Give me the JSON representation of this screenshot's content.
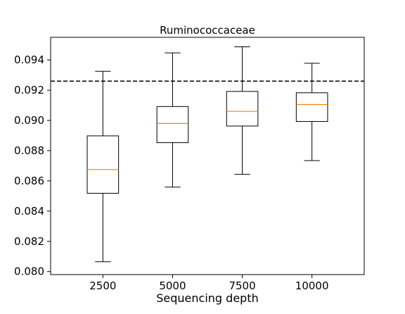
{
  "chart_data": {
    "type": "box",
    "title": "Ruminococcaceae",
    "xlabel": "Sequencing depth",
    "ylabel": "",
    "ylim": [
      0.0798,
      0.0955
    ],
    "yticks": [
      0.08,
      0.082,
      0.084,
      0.086,
      0.088,
      0.09,
      0.092,
      0.094
    ],
    "ytick_labels": [
      "0.080",
      "0.082",
      "0.084",
      "0.086",
      "0.088",
      "0.090",
      "0.092",
      "0.094"
    ],
    "categories": [
      "2500",
      "5000",
      "7500",
      "10000"
    ],
    "boxes": [
      {
        "category": "2500",
        "whisker_low": 0.08065,
        "q1": 0.08518,
        "median": 0.08675,
        "q3": 0.08898,
        "whisker_high": 0.09325
      },
      {
        "category": "5000",
        "whisker_low": 0.08559,
        "q1": 0.08853,
        "median": 0.0898,
        "q3": 0.09092,
        "whisker_high": 0.09447
      },
      {
        "category": "7500",
        "whisker_low": 0.08643,
        "q1": 0.08963,
        "median": 0.0906,
        "q3": 0.09192,
        "whisker_high": 0.09487
      },
      {
        "category": "10000",
        "whisker_low": 0.08734,
        "q1": 0.08993,
        "median": 0.09105,
        "q3": 0.09183,
        "whisker_high": 0.09378
      }
    ],
    "reference_line": {
      "y": 0.0926,
      "style": "dashed",
      "color": "#000000"
    },
    "grid": false,
    "colors": {
      "box": "#000000",
      "median": "#ff7f0e",
      "whisker": "#000000"
    }
  }
}
